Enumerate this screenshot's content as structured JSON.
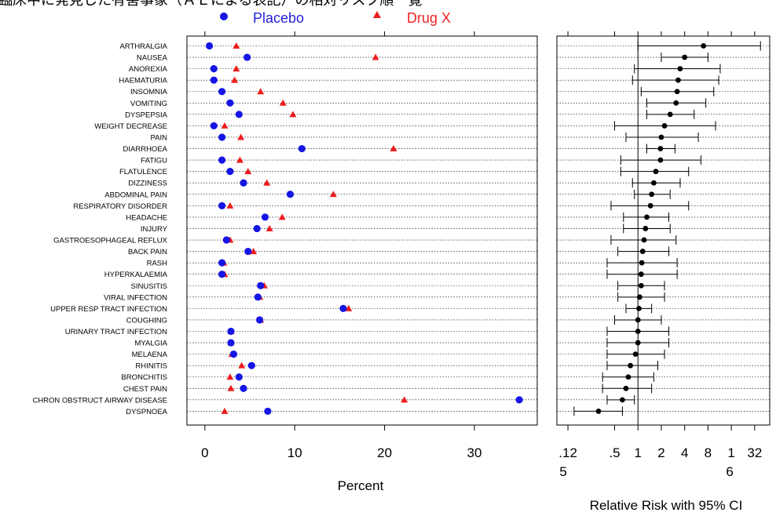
{
  "title": "臨床中に発見した有害事象（ＡＥによる表記）の相対リスク順一覧",
  "legend": {
    "placebo": "Placebo",
    "drug": "Drug X"
  },
  "colors": {
    "placebo": "#1515e6",
    "drug": "#ee1c1c",
    "ci": "#000000"
  },
  "left_panel": {
    "xlabel": "Percent",
    "ticks": [
      "0",
      "10",
      "20",
      "30"
    ]
  },
  "right_panel": {
    "xlabel": "Relative Risk with 95% CI",
    "ticks_line1": [
      ".12",
      ".5",
      "1",
      "2",
      "4",
      "8",
      "1",
      "32"
    ],
    "ticks_line2": [
      "5",
      "6"
    ]
  },
  "chart_data": [
    {
      "type": "scatter",
      "xlabel": "Percent",
      "xlim": [
        -2,
        37
      ],
      "xticks": [
        0,
        10,
        20,
        30
      ],
      "grid": "horizontal dotted",
      "legend_position": "top",
      "categories": [
        "ARTHRALGIA",
        "NAUSEA",
        "ANOREXIA",
        "HAEMATURIA",
        "INSOMNIA",
        "VOMITING",
        "DYSPEPSIA",
        "WEIGHT DECREASE",
        "PAIN",
        "DIARRHOEA",
        "FATIGU",
        "FLATULENCE",
        "DIZZINESS",
        "ABDOMINAL PAIN",
        "RESPIRATORY DISORDER",
        "HEADACHE",
        "INJURY",
        "GASTROESOPHAGEAL REFLUX",
        "BACK PAIN",
        "RASH",
        "HYPERKALAEMIA",
        "SINUSITIS",
        "VIRAL INFECTION",
        "UPPER RESP TRACT INFECTION",
        "COUGHING",
        "URINARY TRACT INFECTION",
        "MYALGIA",
        "MELAENA",
        "RHINITIS",
        "BRONCHITIS",
        "CHEST PAIN",
        "CHRON OBSTRUCT AIRWAY DISEASE",
        "DYSPNOEA"
      ],
      "series": [
        {
          "name": "Placebo",
          "marker": "circle",
          "values": [
            0.5,
            4.7,
            1.0,
            1.0,
            1.9,
            2.8,
            3.8,
            1.0,
            1.9,
            10.8,
            1.9,
            2.8,
            4.3,
            9.5,
            1.9,
            6.7,
            5.8,
            2.4,
            4.8,
            1.9,
            1.9,
            6.2,
            5.9,
            15.4,
            6.1,
            2.9,
            2.9,
            3.2,
            5.2,
            3.8,
            4.3,
            35.0,
            7.0
          ]
        },
        {
          "name": "Drug X",
          "marker": "triangle",
          "values": [
            3.5,
            19.0,
            3.5,
            3.3,
            6.2,
            8.7,
            9.8,
            2.2,
            4.0,
            21.0,
            3.9,
            4.8,
            6.9,
            14.3,
            2.8,
            8.6,
            7.2,
            2.8,
            5.4,
            2.1,
            2.2,
            6.6,
            6.1,
            16.0,
            6.2,
            2.9,
            2.9,
            3.0,
            4.1,
            2.8,
            2.9,
            22.2,
            2.2
          ]
        }
      ]
    },
    {
      "type": "scatter",
      "xlabel": "Relative Risk with 95% CI",
      "scale": "log",
      "xlim": [
        0.09,
        50
      ],
      "xticks": [
        0.125,
        0.5,
        1,
        2,
        4,
        8,
        16,
        32
      ],
      "reference_line": 1,
      "categories": [
        "ARTHRALGIA",
        "NAUSEA",
        "ANOREXIA",
        "HAEMATURIA",
        "INSOMNIA",
        "VOMITING",
        "DYSPEPSIA",
        "WEIGHT DECREASE",
        "PAIN",
        "DIARRHOEA",
        "FATIGU",
        "FLATULENCE",
        "DIZZINESS",
        "ABDOMINAL PAIN",
        "RESPIRATORY DISORDER",
        "HEADACHE",
        "INJURY",
        "GASTROESOPHAGEAL REFLUX",
        "BACK PAIN",
        "RASH",
        "HYPERKALAEMIA",
        "SINUSITIS",
        "VIRAL INFECTION",
        "UPPER RESP TRACT INFECTION",
        "COUGHING",
        "URINARY TRACT INFECTION",
        "MYALGIA",
        "MELAENA",
        "RHINITIS",
        "BRONCHITIS",
        "CHEST PAIN",
        "CHRON OBSTRUCT AIRWAY DISEASE",
        "DYSPNOEA"
      ],
      "rr": [
        7.0,
        4.0,
        3.5,
        3.3,
        3.2,
        3.1,
        2.6,
        2.2,
        2.0,
        1.95,
        1.95,
        1.7,
        1.6,
        1.5,
        1.45,
        1.3,
        1.25,
        1.2,
        1.15,
        1.12,
        1.1,
        1.1,
        1.05,
        1.03,
        1.0,
        1.0,
        1.0,
        0.93,
        0.8,
        0.75,
        0.7,
        0.63,
        0.31
      ],
      "lower": [
        1.0,
        2.0,
        0.9,
        0.85,
        1.1,
        1.3,
        1.3,
        0.5,
        0.7,
        1.3,
        0.6,
        0.6,
        0.85,
        0.9,
        0.45,
        0.65,
        0.65,
        0.45,
        0.55,
        0.4,
        0.4,
        0.55,
        0.55,
        0.7,
        0.5,
        0.4,
        0.4,
        0.4,
        0.4,
        0.35,
        0.35,
        0.4,
        0.15
      ],
      "upper": [
        38.0,
        8.0,
        11.5,
        11.0,
        9.5,
        7.5,
        5.3,
        10.0,
        6.0,
        3.0,
        6.5,
        4.5,
        3.5,
        2.6,
        4.5,
        2.5,
        2.6,
        3.1,
        2.5,
        3.2,
        3.2,
        2.2,
        2.2,
        1.5,
        2.0,
        2.5,
        2.5,
        2.2,
        1.8,
        1.6,
        1.5,
        0.9,
        0.63
      ]
    }
  ]
}
